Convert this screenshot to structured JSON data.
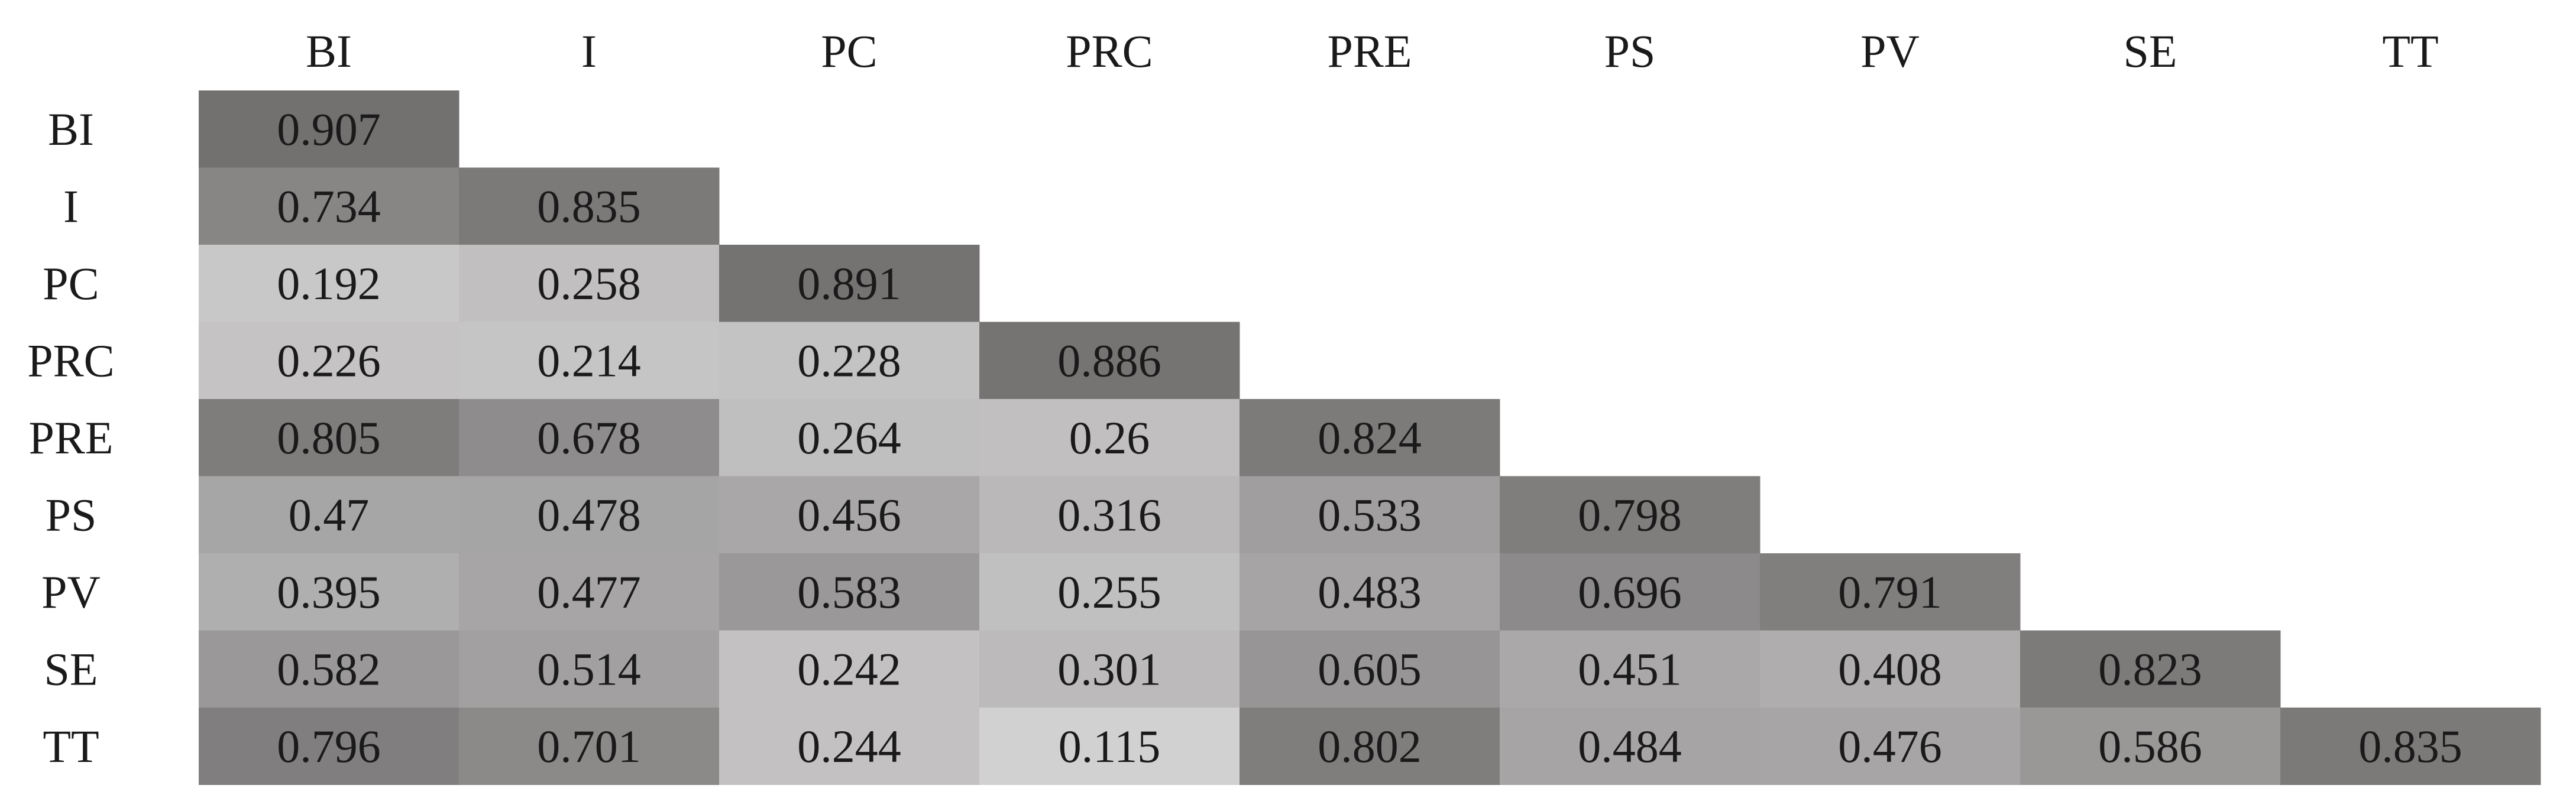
{
  "chart_data": {
    "type": "heatmap",
    "x_categories": [
      "BI",
      "I",
      "PC",
      "PRC",
      "PRE",
      "PS",
      "PV",
      "SE",
      "TT"
    ],
    "y_categories": [
      "BI",
      "I",
      "PC",
      "PRC",
      "PRE",
      "PS",
      "PV",
      "SE",
      "TT"
    ],
    "values": [
      [
        0.907
      ],
      [
        0.734,
        0.835
      ],
      [
        0.192,
        0.258,
        0.891
      ],
      [
        0.226,
        0.214,
        0.228,
        0.886
      ],
      [
        0.805,
        0.678,
        0.264,
        0.26,
        0.824
      ],
      [
        0.47,
        0.478,
        0.456,
        0.316,
        0.533,
        0.798
      ],
      [
        0.395,
        0.477,
        0.583,
        0.255,
        0.483,
        0.696,
        0.791
      ],
      [
        0.582,
        0.514,
        0.242,
        0.301,
        0.605,
        0.451,
        0.408,
        0.823
      ],
      [
        0.796,
        0.701,
        0.244,
        0.115,
        0.802,
        0.484,
        0.476,
        0.586,
        0.835
      ]
    ],
    "color_low": "#d2d1d1",
    "color_high": "#737070"
  }
}
